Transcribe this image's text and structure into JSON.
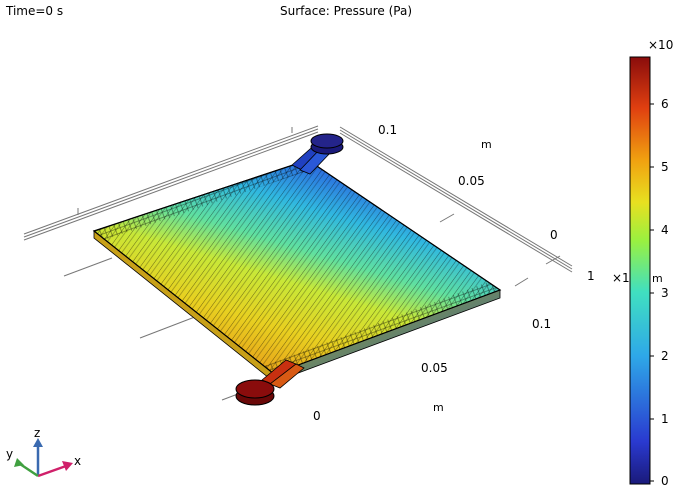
{
  "header": {
    "time_label": "Time=0 s",
    "plot_title": "Surface: Pressure (Pa)"
  },
  "colorbar": {
    "exponent_label": "×10",
    "ticks": [
      "0",
      "1",
      "2",
      "3",
      "4",
      "5",
      "6"
    ],
    "range": [
      0,
      7
    ],
    "colors": [
      "#1a1a7a",
      "#2a3ad0",
      "#2ea8e8",
      "#40e0c0",
      "#9af040",
      "#e8e020",
      "#f0a010",
      "#e04010",
      "#8a0c0c"
    ]
  },
  "axes": {
    "x_ticks": [
      "0",
      "0.05",
      "0.1"
    ],
    "x_unit": "m",
    "y_ticks": [
      "0.1",
      "0.05",
      "0",
      "1"
    ],
    "y_unit": "m",
    "y_exponent_label": "×1",
    "y_unit_right": "m"
  },
  "triad": {
    "z": "z",
    "y": "y",
    "x": "x"
  },
  "surface": {
    "inlet_color": "#8a0c0c",
    "outlet_color": "#1a1a7a"
  }
}
